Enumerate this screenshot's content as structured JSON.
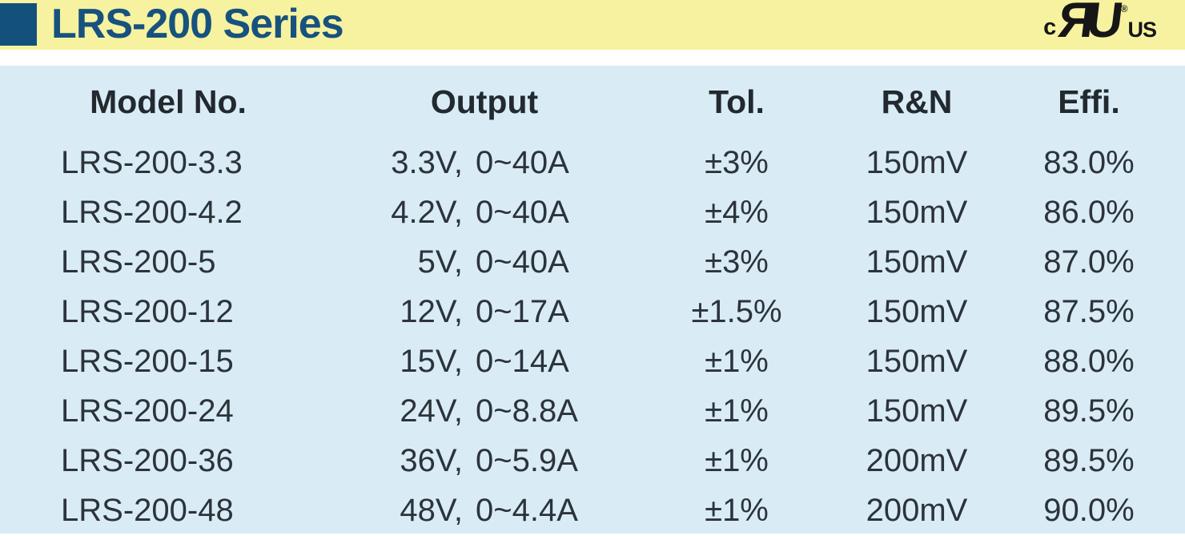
{
  "header": {
    "title": "LRS-200 Series",
    "certification": {
      "prefix": "c",
      "mark": "ЯU",
      "registered": "®",
      "suffix": "US"
    }
  },
  "colors": {
    "banner_yellow": "#f7f2a0",
    "accent_navy": "#17527e",
    "sheet_blue": "#d9ecf6",
    "text_dark": "#2c333b",
    "logo_black": "#161616"
  },
  "table": {
    "columns": [
      "Model No.",
      "Output",
      "Tol.",
      "R&N",
      "Effi."
    ],
    "rows": [
      {
        "model": "LRS-200-3.3",
        "output": "3.3V, 0~40A",
        "tol": "±3%",
        "rn": "150mV",
        "effi": "83.0%"
      },
      {
        "model": "LRS-200-4.2",
        "output": "4.2V, 0~40A",
        "tol": "±4%",
        "rn": "150mV",
        "effi": "86.0%"
      },
      {
        "model": "LRS-200-5",
        "output": "5V, 0~40A",
        "tol": "±3%",
        "rn": "150mV",
        "effi": "87.0%"
      },
      {
        "model": "LRS-200-12",
        "output": "12V, 0~17A",
        "tol": "±1.5%",
        "rn": "150mV",
        "effi": "87.5%"
      },
      {
        "model": "LRS-200-15",
        "output": "15V, 0~14A",
        "tol": "±1%",
        "rn": "150mV",
        "effi": "88.0%"
      },
      {
        "model": "LRS-200-24",
        "output": "24V, 0~8.8A",
        "tol": "±1%",
        "rn": "150mV",
        "effi": "89.5%"
      },
      {
        "model": "LRS-200-36",
        "output": "36V, 0~5.9A",
        "tol": "±1%",
        "rn": "200mV",
        "effi": "89.5%"
      },
      {
        "model": "LRS-200-48",
        "output": "48V, 0~4.4A",
        "tol": "±1%",
        "rn": "200mV",
        "effi": "90.0%"
      }
    ]
  }
}
